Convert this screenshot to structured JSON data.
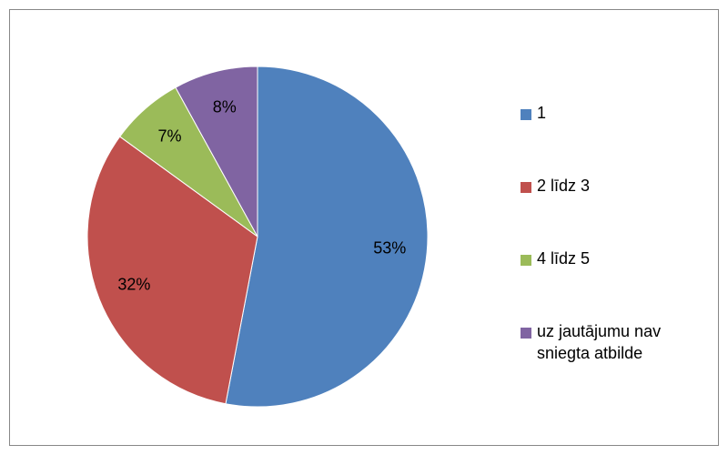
{
  "chart_data": {
    "type": "pie",
    "categories": [
      "1",
      "2 līdz 3",
      "4 līdz 5",
      "uz jautājumu nav sniegta atbilde"
    ],
    "values": [
      53,
      32,
      7,
      8
    ],
    "value_labels": [
      "53%",
      "32%",
      "7%",
      "8%"
    ],
    "colors": [
      "#4f81bd",
      "#c0504d",
      "#9bbb59",
      "#8064a2"
    ],
    "legend": "right"
  }
}
